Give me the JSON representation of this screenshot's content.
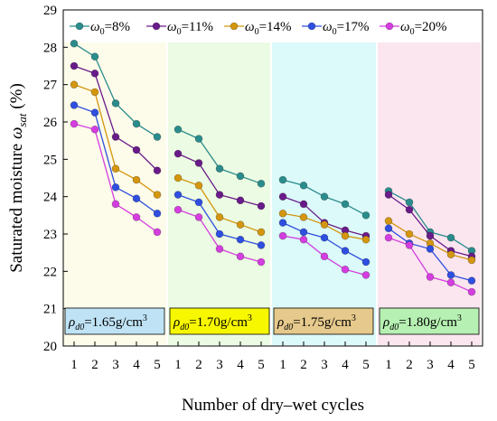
{
  "chart_data": {
    "type": "line",
    "xlabel": "Number of dry–wet cycles",
    "ylabel_main": "Saturated moisture ",
    "ylabel_symbol": "ω",
    "ylabel_sub": "sat",
    "ylabel_unit": " (%)",
    "ylim": [
      20,
      29
    ],
    "yticks": [
      "20",
      "21",
      "22",
      "23",
      "24",
      "25",
      "26",
      "27",
      "28",
      "29"
    ],
    "xticks": [
      "1",
      "2",
      "3",
      "4",
      "5"
    ],
    "grid": false,
    "legend_position": "top",
    "legend": [
      {
        "symbol": "ω",
        "sub": "0",
        "text": "=8%"
      },
      {
        "symbol": "ω",
        "sub": "0",
        "text": "=11%"
      },
      {
        "symbol": "ω",
        "sub": "0",
        "text": "=14%"
      },
      {
        "symbol": "ω",
        "sub": "0",
        "text": "=17%"
      },
      {
        "symbol": "ω",
        "sub": "0",
        "text": "=20%"
      }
    ],
    "colors": [
      "#2a8c8c",
      "#6a1b8a",
      "#d4960e",
      "#2f4fe0",
      "#d43ee0"
    ],
    "panel_backgrounds": [
      "#fdfbea",
      "#ecfbe3",
      "#dcfafa",
      "#fbe6ef"
    ],
    "box_backgrounds": [
      "#bfe3f5",
      "#f7f700",
      "#e6c98c",
      "#b6f0b2"
    ],
    "panels": [
      {
        "label_symbol": "ρ",
        "label_sub": "d0",
        "label_text": "=1.65g/cm",
        "label_sup": "3",
        "series": [
          {
            "values": [
              28.1,
              27.75,
              26.5,
              25.95,
              25.6
            ]
          },
          {
            "values": [
              27.5,
              27.3,
              25.6,
              25.25,
              24.7
            ]
          },
          {
            "values": [
              27.0,
              26.8,
              24.75,
              24.45,
              24.05
            ]
          },
          {
            "values": [
              26.45,
              26.25,
              24.25,
              23.95,
              23.55
            ]
          },
          {
            "values": [
              25.95,
              25.8,
              23.8,
              23.45,
              23.05
            ]
          }
        ]
      },
      {
        "label_symbol": "ρ",
        "label_sub": "d0",
        "label_text": "=1.70g/cm",
        "label_sup": "3",
        "series": [
          {
            "values": [
              25.8,
              25.55,
              24.75,
              24.55,
              24.35
            ]
          },
          {
            "values": [
              25.15,
              24.9,
              24.05,
              23.9,
              23.75
            ]
          },
          {
            "values": [
              24.5,
              24.3,
              23.45,
              23.25,
              23.05
            ]
          },
          {
            "values": [
              24.05,
              23.85,
              23.0,
              22.85,
              22.7
            ]
          },
          {
            "values": [
              23.65,
              23.45,
              22.6,
              22.4,
              22.25
            ]
          }
        ]
      },
      {
        "label_symbol": "ρ",
        "label_sub": "d0",
        "label_text": "=1.75g/cm",
        "label_sup": "3",
        "series": [
          {
            "values": [
              24.45,
              24.3,
              24.0,
              23.8,
              23.5
            ]
          },
          {
            "values": [
              24.0,
              23.8,
              23.3,
              23.1,
              22.95
            ]
          },
          {
            "values": [
              23.55,
              23.45,
              23.25,
              22.95,
              22.85
            ]
          },
          {
            "values": [
              23.3,
              23.05,
              22.9,
              22.55,
              22.25
            ]
          },
          {
            "values": [
              22.95,
              22.85,
              22.4,
              22.05,
              21.9
            ]
          }
        ]
      },
      {
        "label_symbol": "ρ",
        "label_sub": "d0",
        "label_text": "=1.80g/cm",
        "label_sup": "3",
        "series": [
          {
            "values": [
              24.15,
              23.85,
              23.05,
              22.9,
              22.55
            ]
          },
          {
            "values": [
              24.05,
              23.65,
              22.95,
              22.55,
              22.4
            ]
          },
          {
            "values": [
              23.35,
              23.0,
              22.75,
              22.45,
              22.3
            ]
          },
          {
            "values": [
              23.15,
              22.75,
              22.6,
              21.9,
              21.75
            ]
          },
          {
            "values": [
              22.9,
              22.7,
              21.85,
              21.7,
              21.45
            ]
          }
        ]
      }
    ]
  }
}
